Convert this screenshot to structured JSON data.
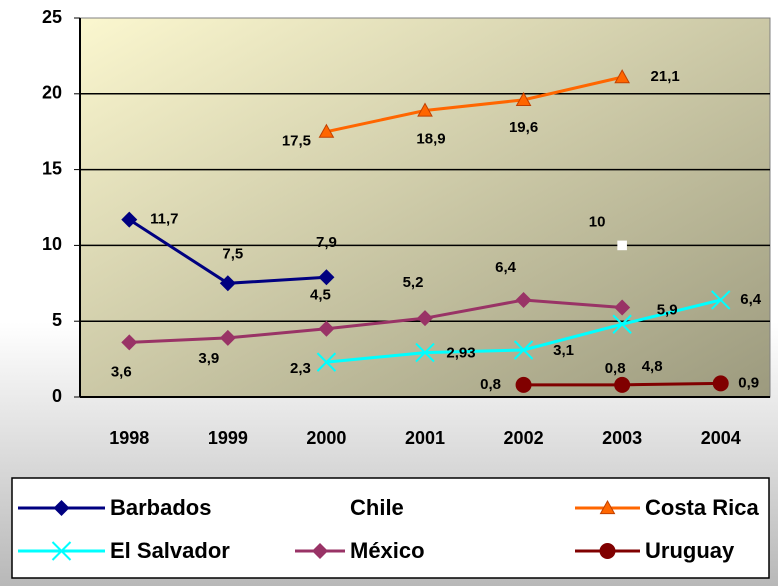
{
  "chart_data": {
    "type": "line",
    "categories": [
      "1998",
      "1999",
      "2000",
      "2001",
      "2002",
      "2003",
      "2004"
    ],
    "ylim": [
      0,
      25
    ],
    "yticks": [
      0,
      5,
      10,
      15,
      20,
      25
    ],
    "grid": true,
    "legend": "bottom",
    "series": [
      {
        "name": "Barbados",
        "color": "#000080",
        "marker": "diamond",
        "values": [
          11.7,
          7.5,
          7.9,
          null,
          null,
          null,
          null
        ],
        "value_labels": [
          "11,7",
          "7,5",
          "7,9",
          null,
          null,
          null,
          null
        ]
      },
      {
        "name": "Chile",
        "color": "#ffffff",
        "marker": "square",
        "values": [
          null,
          null,
          null,
          null,
          null,
          10,
          null
        ],
        "value_labels": [
          null,
          null,
          null,
          null,
          null,
          "10",
          null
        ]
      },
      {
        "name": "Costa Rica",
        "color": "#ff6600",
        "marker": "triangle",
        "values": [
          null,
          null,
          17.5,
          18.9,
          19.6,
          21.1,
          null
        ],
        "value_labels": [
          null,
          null,
          "17,5",
          "18,9",
          "19,6",
          "21,1",
          null
        ]
      },
      {
        "name": "El Salvador",
        "color": "#00ffff",
        "marker": "x",
        "values": [
          null,
          null,
          2.3,
          2.93,
          3.1,
          4.8,
          6.4
        ],
        "value_labels": [
          null,
          null,
          "2,3",
          "2,93",
          "3,1",
          "4,8",
          "6,4"
        ]
      },
      {
        "name": "México",
        "color": "#993366",
        "marker": "diamond",
        "values": [
          3.6,
          3.9,
          4.5,
          5.2,
          6.4,
          5.9,
          null
        ],
        "value_labels": [
          "3,6",
          "3,9",
          "4,5",
          "5,2",
          "6,4",
          "5,9",
          null
        ]
      },
      {
        "name": "Uruguay",
        "color": "#800000",
        "marker": "circle",
        "values": [
          null,
          null,
          null,
          null,
          0.8,
          0.8,
          0.9
        ],
        "value_labels": [
          null,
          null,
          null,
          null,
          "0,8",
          "0,8",
          "0,9"
        ]
      }
    ]
  }
}
